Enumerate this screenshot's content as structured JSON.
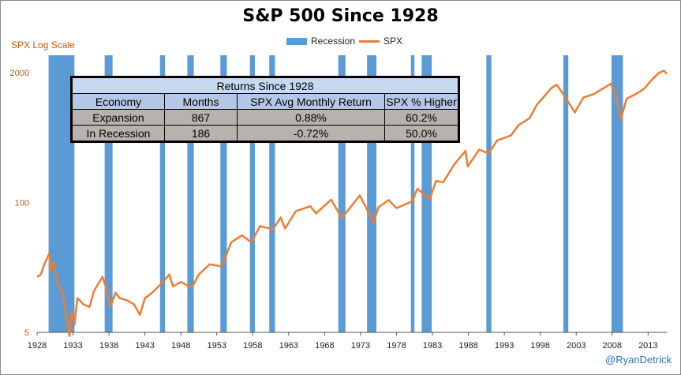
{
  "header": {
    "title": "S&P 500 Since 1928",
    "y_axis_label": "SPX Log Scale",
    "credit": "@RyanDetrick"
  },
  "legend": {
    "recession": "Recession",
    "spx": "SPX"
  },
  "colors": {
    "recession": "#5b9bd5",
    "spx": "#ed7d31",
    "axis_label": "#c55a11",
    "credit": "#2e74b5"
  },
  "table": {
    "title": "Returns Since 1928",
    "headers": [
      "Economy",
      "Months",
      "SPX Avg Monthly Return",
      "SPX % Higher"
    ],
    "rows": [
      [
        "Expansion",
        "867",
        "0.88%",
        "60.2%"
      ],
      [
        "In Recession",
        "186",
        "-0.72%",
        "50.0%"
      ]
    ]
  },
  "chart_data": {
    "type": "line",
    "title": "S&P 500 Since 1928",
    "ylabel": "SPX Log Scale",
    "yscale": "log",
    "ylim": [
      5,
      3000
    ],
    "xlim": [
      1928,
      2015.6
    ],
    "yticks": [
      5,
      100,
      2000
    ],
    "xticks": [
      1928,
      1933,
      1938,
      1943,
      1948,
      1953,
      1958,
      1963,
      1968,
      1973,
      1978,
      1983,
      1988,
      1993,
      1998,
      2003,
      2008,
      2013
    ],
    "legend_position": "top-center",
    "grid": false,
    "recessions": [
      [
        1929.6,
        1933.2
      ],
      [
        1937.4,
        1938.5
      ],
      [
        1945.1,
        1945.8
      ],
      [
        1948.9,
        1949.8
      ],
      [
        1953.5,
        1954.4
      ],
      [
        1957.6,
        1958.3
      ],
      [
        1960.3,
        1961.1
      ],
      [
        1969.9,
        1970.9
      ],
      [
        1973.9,
        1975.2
      ],
      [
        1980.0,
        1980.5
      ],
      [
        1981.5,
        1982.9
      ],
      [
        1990.5,
        1991.2
      ],
      [
        2001.2,
        2001.9
      ],
      [
        2007.9,
        2009.5
      ]
    ],
    "series": [
      {
        "name": "SPX",
        "points": [
          [
            1928,
            18
          ],
          [
            1928.5,
            19
          ],
          [
            1929,
            24
          ],
          [
            1929.7,
            31
          ],
          [
            1929.9,
            21
          ],
          [
            1930.3,
            25
          ],
          [
            1930.9,
            15
          ],
          [
            1931.5,
            13
          ],
          [
            1931.9,
            8.5
          ],
          [
            1932.5,
            4.6
          ],
          [
            1932.8,
            8
          ],
          [
            1933.2,
            6
          ],
          [
            1933.6,
            11
          ],
          [
            1934.5,
            9.5
          ],
          [
            1935.3,
            9
          ],
          [
            1935.9,
            13
          ],
          [
            1937.1,
            18
          ],
          [
            1937.6,
            14
          ],
          [
            1938.2,
            9
          ],
          [
            1938.9,
            12.5
          ],
          [
            1939.5,
            11
          ],
          [
            1940.5,
            10.5
          ],
          [
            1941.5,
            9.5
          ],
          [
            1942.3,
            7.5
          ],
          [
            1943,
            11
          ],
          [
            1944,
            12.5
          ],
          [
            1945.5,
            16
          ],
          [
            1946.4,
            19
          ],
          [
            1946.9,
            14.5
          ],
          [
            1948,
            16
          ],
          [
            1949.5,
            14
          ],
          [
            1950.5,
            19
          ],
          [
            1952,
            24
          ],
          [
            1953.7,
            23
          ],
          [
            1955,
            40
          ],
          [
            1956.5,
            47
          ],
          [
            1957.8,
            40
          ],
          [
            1959,
            58
          ],
          [
            1960.8,
            54
          ],
          [
            1961.9,
            71
          ],
          [
            1962.5,
            55
          ],
          [
            1964,
            82
          ],
          [
            1966,
            92
          ],
          [
            1966.8,
            78
          ],
          [
            1968.9,
            107
          ],
          [
            1970.4,
            70
          ],
          [
            1972.9,
            118
          ],
          [
            1974.8,
            63
          ],
          [
            1975.5,
            90
          ],
          [
            1976.9,
            106
          ],
          [
            1978,
            88
          ],
          [
            1980.2,
            103
          ],
          [
            1980.9,
            138
          ],
          [
            1982.6,
            108
          ],
          [
            1983.5,
            165
          ],
          [
            1984.5,
            160
          ],
          [
            1986,
            240
          ],
          [
            1987.6,
            330
          ],
          [
            1987.9,
            230
          ],
          [
            1989.5,
            340
          ],
          [
            1990.8,
            310
          ],
          [
            1992,
            420
          ],
          [
            1993.9,
            470
          ],
          [
            1995,
            600
          ],
          [
            1996.5,
            700
          ],
          [
            1997.5,
            950
          ],
          [
            1998.5,
            1150
          ],
          [
            1999.5,
            1400
          ],
          [
            2000.3,
            1520
          ],
          [
            2001.7,
            1080
          ],
          [
            2002.8,
            800
          ],
          [
            2004,
            1130
          ],
          [
            2005.5,
            1230
          ],
          [
            2007.8,
            1550
          ],
          [
            2008.5,
            1250
          ],
          [
            2009.2,
            680
          ],
          [
            2010,
            1100
          ],
          [
            2011.5,
            1250
          ],
          [
            2012.5,
            1400
          ],
          [
            2013.5,
            1700
          ],
          [
            2014.5,
            2000
          ],
          [
            2015.2,
            2100
          ],
          [
            2015.6,
            1950
          ]
        ]
      }
    ]
  }
}
